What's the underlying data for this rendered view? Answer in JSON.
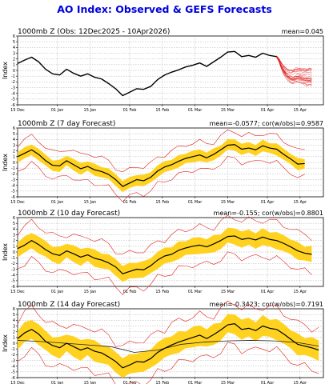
{
  "figure_title": "AO Index: Observed & GEFS Forecasts",
  "colors": {
    "title": "#0000dd",
    "observed": "#000000",
    "ensemble_member": "#e02020",
    "spread_band": "#ffd21f",
    "grid": "#9a9a9a"
  },
  "chart_data": [
    {
      "type": "line",
      "id": "observed",
      "title_left": "1000mb Z (Obs: 12Dec2025 - 10Apr2026)",
      "title_right": "mean=0.045",
      "xlabel": "",
      "ylabel": "Index",
      "ylim": [
        -6,
        6
      ],
      "yticks": [
        -6,
        -5,
        -4,
        -3,
        -2,
        -1,
        0,
        1,
        2,
        3,
        4,
        5,
        6
      ],
      "xlim": [
        "2025-12-15",
        "2026-04-25"
      ],
      "xticks": [
        "15 Dec",
        "01 Jan",
        "15 Jan",
        "01 Feb",
        "15 Feb",
        "01 Mar",
        "15 Mar",
        "01 Apr",
        "15 Apr"
      ],
      "grid": true,
      "series": [
        {
          "role": "observed",
          "x": [
            "2025-12-15",
            "2025-12-18",
            "2025-12-21",
            "2025-12-24",
            "2025-12-27",
            "2025-12-30",
            "2026-01-02",
            "2026-01-05",
            "2026-01-08",
            "2026-01-11",
            "2026-01-14",
            "2026-01-17",
            "2026-01-20",
            "2026-01-23",
            "2026-01-26",
            "2026-01-29",
            "2026-02-01",
            "2026-02-04",
            "2026-02-07",
            "2026-02-10",
            "2026-02-13",
            "2026-02-16",
            "2026-02-19",
            "2026-02-22",
            "2026-02-25",
            "2026-02-28",
            "2026-03-03",
            "2026-03-06",
            "2026-03-09",
            "2026-03-12",
            "2026-03-15",
            "2026-03-18",
            "2026-03-21",
            "2026-03-24",
            "2026-03-27",
            "2026-03-30",
            "2026-04-02",
            "2026-04-05"
          ],
          "y": [
            1.2,
            1.8,
            2.3,
            1.5,
            0.2,
            -0.6,
            -0.8,
            0.2,
            -0.5,
            -1.0,
            -0.6,
            -1.2,
            -1.5,
            -2.3,
            -3.2,
            -4.4,
            -3.8,
            -3.2,
            -3.3,
            -2.8,
            -1.6,
            -0.8,
            -0.3,
            0.1,
            0.6,
            0.9,
            1.3,
            0.7,
            1.5,
            2.3,
            3.2,
            3.3,
            2.4,
            2.6,
            2.3,
            3.0,
            2.6,
            2.4
          ]
        },
        {
          "role": "members",
          "count": 21,
          "start": "2026-04-05",
          "mean_y": [
            2.4,
            1.8,
            0.8,
            0.1,
            -0.5,
            -0.9,
            -1.1,
            -1.2,
            -1.0,
            -0.9,
            -1.0,
            -1.1,
            -1.2,
            -1.3,
            -1.2,
            -1.4
          ],
          "spread": [
            0.05,
            0.3,
            0.6,
            0.8,
            1.0,
            1.1,
            1.2,
            1.3,
            1.4,
            1.4,
            1.5,
            1.5,
            1.6,
            1.6,
            1.7,
            1.7
          ]
        }
      ]
    },
    {
      "type": "line",
      "id": "fc7",
      "title_left": "1000mb Z (7 day Forecast)",
      "title_right": "mean=-0.0577; cor(w/obs)=0.9587",
      "xlabel": "",
      "ylabel": "Index",
      "ylim": [
        -6,
        6
      ],
      "yticks": [
        -6,
        -5,
        -4,
        -3,
        -2,
        -1,
        0,
        1,
        2,
        3,
        4,
        5,
        6
      ],
      "xlim": [
        "2025-12-15",
        "2026-04-25"
      ],
      "xticks": [
        "15 Dec",
        "01 Jan",
        "15 Jan",
        "01 Feb",
        "15 Feb",
        "01 Mar",
        "15 Mar",
        "01 Apr",
        "15 Apr"
      ],
      "grid": true,
      "series": [
        {
          "role": "observed",
          "x": [
            "2025-12-15",
            "2025-12-18",
            "2025-12-21",
            "2025-12-24",
            "2025-12-27",
            "2025-12-30",
            "2026-01-02",
            "2026-01-05",
            "2026-01-08",
            "2026-01-11",
            "2026-01-14",
            "2026-01-17",
            "2026-01-20",
            "2026-01-23",
            "2026-01-26",
            "2026-01-29",
            "2026-02-01",
            "2026-02-04",
            "2026-02-07",
            "2026-02-10",
            "2026-02-13",
            "2026-02-16",
            "2026-02-19",
            "2026-02-22",
            "2026-02-25",
            "2026-02-28",
            "2026-03-03",
            "2026-03-06",
            "2026-03-09",
            "2026-03-12",
            "2026-03-15",
            "2026-03-18",
            "2026-03-21",
            "2026-03-24",
            "2026-03-27",
            "2026-03-30",
            "2026-04-02",
            "2026-04-05",
            "2026-04-08",
            "2026-04-11",
            "2026-04-14",
            "2026-04-17"
          ],
          "y": [
            1.0,
            1.6,
            2.2,
            1.4,
            0.3,
            -0.5,
            -0.6,
            0.3,
            -0.4,
            -1.1,
            -0.7,
            -1.3,
            -1.6,
            -2.1,
            -3.0,
            -4.2,
            -3.6,
            -3.0,
            -3.2,
            -2.6,
            -1.5,
            -0.8,
            -0.4,
            0.2,
            0.7,
            1.0,
            1.3,
            0.8,
            1.4,
            2.2,
            3.0,
            3.1,
            2.3,
            2.5,
            2.2,
            2.9,
            2.5,
            2.3,
            1.4,
            0.6,
            -0.3,
            -0.2
          ]
        },
        {
          "role": "band",
          "x_start": "2025-12-15",
          "lower_offset": 0.9,
          "upper_offset": 0.9
        },
        {
          "role": "envelope",
          "x_start": "2025-12-15",
          "offset": 2.2
        }
      ]
    },
    {
      "type": "line",
      "id": "fc10",
      "title_left": "1000mb Z (10 day Forecast)",
      "title_right": "mean=-0.155; cor(w/obs)=0.8801",
      "xlabel": "",
      "ylabel": "Index",
      "ylim": [
        -6,
        6
      ],
      "yticks": [
        -6,
        -5,
        -4,
        -3,
        -2,
        -1,
        0,
        1,
        2,
        3,
        4,
        5,
        6
      ],
      "xlim": [
        "2025-12-15",
        "2026-04-25"
      ],
      "xticks": [
        "15 Dec",
        "01 Jan",
        "15 Jan",
        "01 Feb",
        "15 Feb",
        "01 Mar",
        "15 Mar",
        "01 Apr",
        "15 Apr"
      ],
      "grid": true,
      "series": [
        {
          "role": "observed",
          "x": [
            "2025-12-15",
            "2025-12-18",
            "2025-12-21",
            "2025-12-24",
            "2025-12-27",
            "2025-12-30",
            "2026-01-02",
            "2026-01-05",
            "2026-01-08",
            "2026-01-11",
            "2026-01-14",
            "2026-01-17",
            "2026-01-20",
            "2026-01-23",
            "2026-01-26",
            "2026-01-29",
            "2026-02-01",
            "2026-02-04",
            "2026-02-07",
            "2026-02-10",
            "2026-02-13",
            "2026-02-16",
            "2026-02-19",
            "2026-02-22",
            "2026-02-25",
            "2026-02-28",
            "2026-03-03",
            "2026-03-06",
            "2026-03-09",
            "2026-03-12",
            "2026-03-15",
            "2026-03-18",
            "2026-03-21",
            "2026-03-24",
            "2026-03-27",
            "2026-03-30",
            "2026-04-02",
            "2026-04-05",
            "2026-04-08",
            "2026-04-11",
            "2026-04-14",
            "2026-04-17",
            "2026-04-20"
          ],
          "y": [
            0.6,
            1.2,
            2.0,
            1.3,
            0.4,
            -0.3,
            -0.6,
            0.2,
            -0.3,
            -0.9,
            -0.5,
            -1.1,
            -1.4,
            -1.9,
            -2.6,
            -3.8,
            -3.4,
            -3.0,
            -3.1,
            -2.4,
            -1.4,
            -0.7,
            -0.4,
            0.3,
            0.7,
            1.0,
            1.2,
            0.9,
            1.4,
            2.0,
            2.7,
            2.8,
            2.2,
            2.4,
            2.1,
            2.6,
            2.2,
            2.0,
            1.5,
            0.9,
            0.2,
            -0.2,
            -0.4
          ]
        },
        {
          "role": "band",
          "x_start": "2025-12-15",
          "lower_offset": 1.3,
          "upper_offset": 1.3
        },
        {
          "role": "envelope",
          "x_start": "2025-12-15",
          "offset": 3.0
        }
      ]
    },
    {
      "type": "line",
      "id": "fc14",
      "title_left": "1000mb Z (14 day Forecast)",
      "title_right": "mean=-0.3423; cor(w/obs)=0.7191",
      "xlabel": "",
      "ylabel": "Index",
      "ylim": [
        -6,
        6
      ],
      "yticks": [
        -6,
        -5,
        -4,
        -3,
        -2,
        -1,
        0,
        1,
        2,
        3,
        4,
        5,
        6
      ],
      "xlim": [
        "2025-12-15",
        "2026-04-25"
      ],
      "xticks": [
        "15 Dec",
        "01 Jan",
        "15 Jan",
        "01 Feb",
        "15 Feb",
        "01 Mar",
        "15 Mar",
        "01 Apr",
        "15 Apr"
      ],
      "grid": true,
      "series": [
        {
          "role": "observed",
          "x": [
            "2025-12-15",
            "2025-12-18",
            "2025-12-21",
            "2025-12-24",
            "2025-12-27",
            "2025-12-30",
            "2026-01-02",
            "2026-01-05",
            "2026-01-08",
            "2026-01-11",
            "2026-01-14",
            "2026-01-17",
            "2026-01-20",
            "2026-01-23",
            "2026-01-26",
            "2026-01-29",
            "2026-02-01",
            "2026-02-04",
            "2026-02-07",
            "2026-02-10",
            "2026-02-13",
            "2026-02-16",
            "2026-02-19",
            "2026-02-22",
            "2026-02-25",
            "2026-02-28",
            "2026-03-03",
            "2026-03-06",
            "2026-03-09",
            "2026-03-12",
            "2026-03-15",
            "2026-03-18",
            "2026-03-21",
            "2026-03-24",
            "2026-03-27",
            "2026-03-30",
            "2026-04-02",
            "2026-04-05",
            "2026-04-08",
            "2026-04-11",
            "2026-04-14",
            "2026-04-17",
            "2026-04-20",
            "2026-04-23"
          ],
          "y": [
            0.8,
            1.8,
            2.4,
            1.6,
            0.3,
            -0.4,
            -0.8,
            0.0,
            -0.6,
            -1.2,
            -0.8,
            -1.4,
            -1.7,
            -2.4,
            -3.2,
            -4.3,
            -3.8,
            -3.2,
            -3.3,
            -2.7,
            -1.6,
            -0.9,
            -0.3,
            0.2,
            0.6,
            1.0,
            1.4,
            0.8,
            1.5,
            2.3,
            3.2,
            3.4,
            2.4,
            2.6,
            2.2,
            3.0,
            2.6,
            2.4,
            1.6,
            0.7,
            -0.2,
            -0.5,
            -0.8,
            -1.2
          ]
        },
        {
          "role": "mean",
          "x": [
            "2025-12-15",
            "2025-12-25",
            "2026-01-04",
            "2026-01-14",
            "2026-01-24",
            "2026-02-03",
            "2026-02-13",
            "2026-02-23",
            "2026-03-05",
            "2026-03-15",
            "2026-03-25",
            "2026-04-04",
            "2026-04-14",
            "2026-04-23"
          ],
          "y": [
            0.5,
            0.3,
            0.0,
            -0.3,
            -0.6,
            -1.6,
            -1.2,
            -0.2,
            0.2,
            0.4,
            0.5,
            0.4,
            0.1,
            -0.5
          ]
        },
        {
          "role": "band",
          "x_start": "2025-12-15",
          "lower_offset": 1.6,
          "upper_offset": 1.6
        },
        {
          "role": "envelope",
          "x_start": "2025-12-15",
          "offset": 3.4
        }
      ]
    }
  ]
}
